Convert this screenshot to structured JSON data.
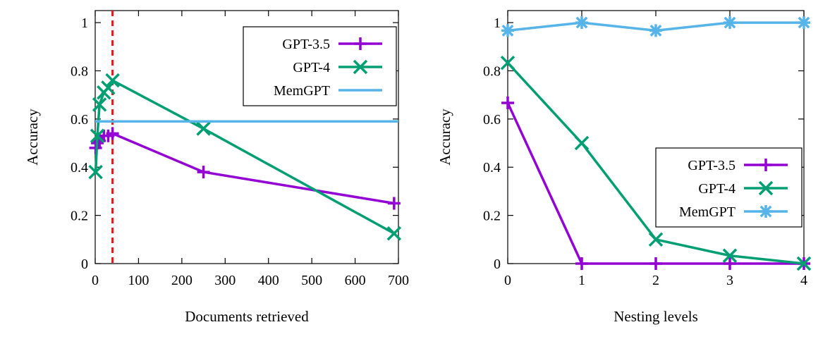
{
  "charts": [
    {
      "type": "line",
      "xlabel": "Documents retrieved",
      "ylabel": "Accuracy",
      "xlim": [
        0,
        700
      ],
      "ylim": [
        0,
        1.05
      ],
      "xticks": [
        0,
        100,
        200,
        300,
        400,
        500,
        600,
        700
      ],
      "xtick_labels": [
        "0",
        "100",
        "200",
        "300",
        "400",
        "500",
        "600",
        "700"
      ],
      "yticks": [
        0,
        0.2,
        0.4,
        0.6,
        0.8,
        1
      ],
      "ytick_labels": [
        "0",
        "0.2",
        "0.4",
        "0.6",
        "0.8",
        "1"
      ],
      "grid": false,
      "legend_position": "top-right",
      "vline": {
        "x": 40,
        "color": "#e41a1c",
        "style": "dashed"
      },
      "series": [
        {
          "name": "GPT-3.5",
          "color": "#9400d3",
          "marker": "plus",
          "x": [
            1,
            5,
            10,
            20,
            30,
            40,
            250,
            690
          ],
          "y": [
            0.48,
            0.5,
            0.51,
            0.53,
            0.53,
            0.54,
            0.38,
            0.25
          ]
        },
        {
          "name": "GPT-4",
          "color": "#009e73",
          "marker": "x",
          "x": [
            1,
            5,
            10,
            20,
            30,
            40,
            250,
            690
          ],
          "y": [
            0.38,
            0.53,
            0.66,
            0.71,
            0.73,
            0.76,
            0.56,
            0.125
          ]
        },
        {
          "name": "MemGPT",
          "color": "#56b4e9",
          "marker": "none",
          "x": [
            0,
            700
          ],
          "y": [
            0.59,
            0.59
          ]
        }
      ]
    },
    {
      "type": "line",
      "xlabel": "Nesting levels",
      "ylabel": "Accuracy",
      "xlim": [
        0,
        4
      ],
      "ylim": [
        0,
        1.05
      ],
      "xticks": [
        0,
        1,
        2,
        3,
        4
      ],
      "xtick_labels": [
        "0",
        "1",
        "2",
        "3",
        "4"
      ],
      "yticks": [
        0,
        0.2,
        0.4,
        0.6,
        0.8,
        1
      ],
      "ytick_labels": [
        "0",
        "0.2",
        "0.4",
        "0.6",
        "0.8",
        "1"
      ],
      "grid": false,
      "legend_position": "center-right",
      "series": [
        {
          "name": "GPT-3.5",
          "color": "#9400d3",
          "marker": "plus",
          "x": [
            0,
            1,
            2,
            3,
            4
          ],
          "y": [
            0.667,
            0,
            0,
            0,
            0
          ]
        },
        {
          "name": "GPT-4",
          "color": "#009e73",
          "marker": "x",
          "x": [
            0,
            1,
            2,
            3,
            4
          ],
          "y": [
            0.833,
            0.5,
            0.1,
            0.033,
            0
          ]
        },
        {
          "name": "MemGPT",
          "color": "#56b4e9",
          "marker": "star",
          "x": [
            0,
            1,
            2,
            3,
            4
          ],
          "y": [
            0.967,
            1,
            0.967,
            1,
            1
          ]
        }
      ]
    }
  ]
}
